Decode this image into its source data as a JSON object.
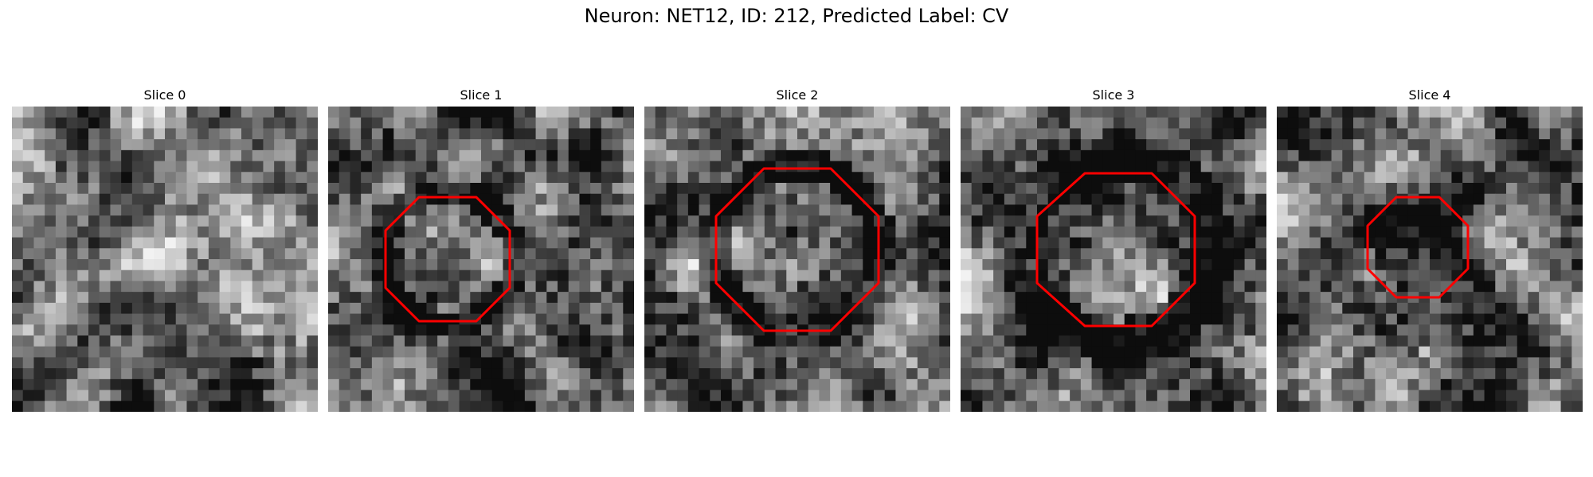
{
  "figure": {
    "title": "Neuron: NET12, ID: 212, Predicted Label: CV"
  },
  "panels": [
    {
      "title": "Slice 0",
      "seed": 11,
      "has_contour": false,
      "background": "bright-textured"
    },
    {
      "title": "Slice 1",
      "seed": 23,
      "has_contour": true,
      "background": "dark-ring"
    },
    {
      "title": "Slice 2",
      "seed": 37,
      "has_contour": true,
      "background": "dark-ring"
    },
    {
      "title": "Slice 3",
      "seed": 41,
      "has_contour": true,
      "background": "dark-surround"
    },
    {
      "title": "Slice 4",
      "seed": 53,
      "has_contour": true,
      "background": "dark-center"
    }
  ],
  "colors": {
    "contour": "#ff0000",
    "background": "#ffffff"
  }
}
